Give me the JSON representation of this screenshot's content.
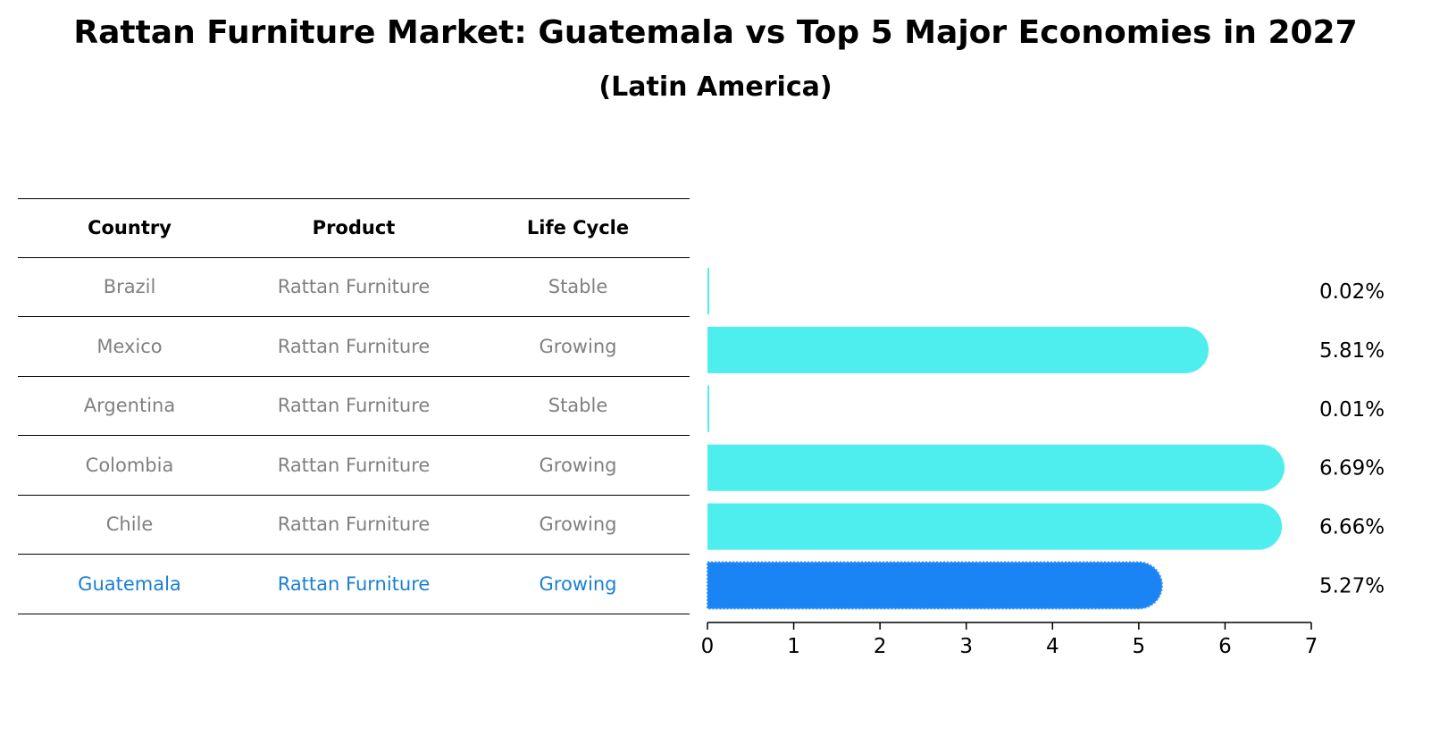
{
  "title": "Rattan Furniture Market: Guatemala vs Top 5 Major Economies in 2027",
  "subtitle": "(Latin America)",
  "table": {
    "headers": [
      "Country",
      "Product",
      "Life Cycle"
    ],
    "rows": [
      {
        "country": "Brazil",
        "product": "Rattan Furniture",
        "life_cycle": "Stable"
      },
      {
        "country": "Mexico",
        "product": "Rattan Furniture",
        "life_cycle": "Growing"
      },
      {
        "country": "Argentina",
        "product": "Rattan Furniture",
        "life_cycle": "Stable"
      },
      {
        "country": "Colombia",
        "product": "Rattan Furniture",
        "life_cycle": "Growing"
      },
      {
        "country": "Chile",
        "product": "Rattan Furniture",
        "life_cycle": "Growing"
      },
      {
        "country": "Guatemala",
        "product": "Rattan Furniture",
        "life_cycle": "Growing"
      }
    ]
  },
  "colors": {
    "bar": "#4EEEEE",
    "highlight_bar": "#1A84F5",
    "row_text": "#808080",
    "highlight_text": "#1A7FD4"
  },
  "chart_data": {
    "type": "bar",
    "orientation": "horizontal",
    "categories": [
      "Brazil",
      "Mexico",
      "Argentina",
      "Colombia",
      "Chile",
      "Guatemala"
    ],
    "values": [
      0.02,
      5.81,
      0.01,
      6.69,
      6.66,
      5.27
    ],
    "value_labels": [
      "0.02%",
      "5.81%",
      "0.01%",
      "6.69%",
      "6.66%",
      "5.27%"
    ],
    "highlight": "Guatemala",
    "xlim": [
      0,
      7
    ],
    "xticks": [
      "0",
      "1",
      "2",
      "3",
      "4",
      "5",
      "6",
      "7"
    ],
    "grid": false
  }
}
